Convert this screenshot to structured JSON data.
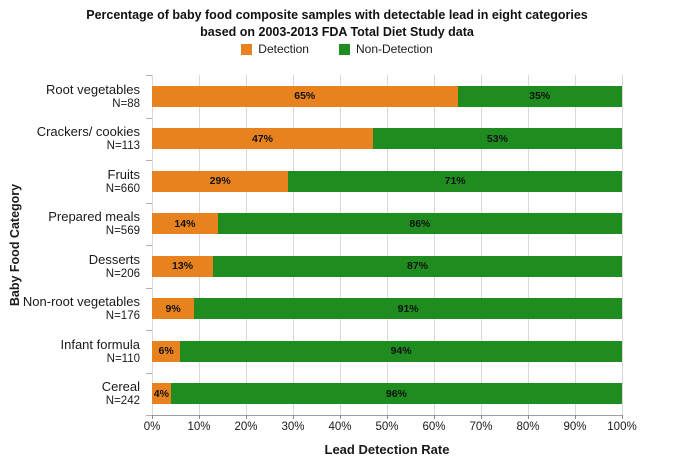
{
  "title": {
    "line1": "Percentage of baby food composite samples with detectable lead in eight categories",
    "line2": "based on 2003-2013 FDA Total Diet Study data"
  },
  "chart_data": {
    "type": "bar",
    "orientation": "horizontal-stacked",
    "title": "Percentage of baby food composite samples with detectable lead in eight categories based on 2003-2013 FDA Total Diet Study data",
    "xlabel": "Lead Detection Rate",
    "ylabel": "Baby Food Category",
    "categories": [
      "Root vegetables",
      "Crackers/ cookies",
      "Fruits",
      "Prepared meals",
      "Desserts",
      "Non-root vegetables",
      "Infant formula",
      "Cereal"
    ],
    "sample_sizes": [
      "N=88",
      "N=113",
      "N=660",
      "N=569",
      "N=206",
      "N=176",
      "N=110",
      "N=242"
    ],
    "series": [
      {
        "name": "Detection",
        "color": "#E8821E",
        "values": [
          65,
          47,
          29,
          14,
          13,
          9,
          6,
          4
        ]
      },
      {
        "name": "Non-Detection",
        "color": "#1E8C1E",
        "values": [
          35,
          53,
          71,
          86,
          87,
          91,
          94,
          96
        ]
      }
    ],
    "value_label_format": "percent",
    "xlim": [
      0,
      100
    ],
    "x_tick_labels": [
      "0%",
      "10%",
      "20%",
      "30%",
      "40%",
      "50%",
      "60%",
      "70%",
      "80%",
      "90%",
      "100%"
    ],
    "grid": "vertical",
    "gridline_color": "#D9D9D9",
    "legend_position": "top"
  }
}
